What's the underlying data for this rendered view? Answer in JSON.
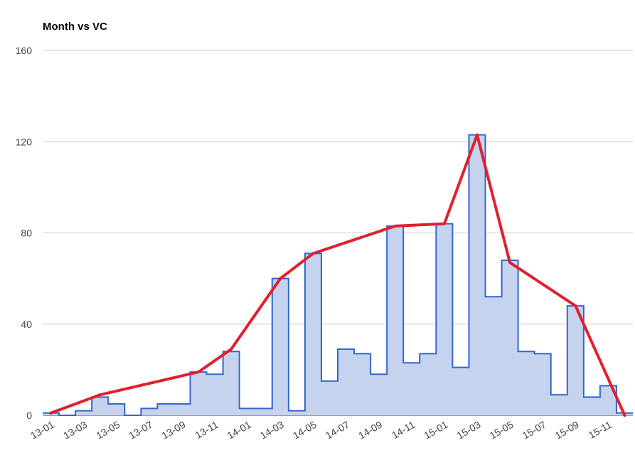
{
  "chart_data": {
    "type": "area",
    "title": "Month vs VC",
    "xlabel": "",
    "ylabel": "",
    "ylim": [
      0,
      160
    ],
    "y_ticks": [
      0,
      40,
      80,
      120,
      160
    ],
    "grid": true,
    "legend": "none",
    "categories": [
      "13-01",
      "13-02",
      "13-03",
      "13-04",
      "13-05",
      "13-06",
      "13-07",
      "13-08",
      "13-09",
      "13-10",
      "13-11",
      "13-12",
      "14-01",
      "14-02",
      "14-03",
      "14-04",
      "14-05",
      "14-06",
      "14-07",
      "14-08",
      "14-09",
      "14-10",
      "14-11",
      "14-12",
      "15-01",
      "15-02",
      "15-03",
      "15-04",
      "15-05",
      "15-06",
      "15-07",
      "15-08",
      "15-09",
      "15-10",
      "15-11",
      "15-12"
    ],
    "x_tick_labels": [
      "13-01",
      "13-03",
      "13-05",
      "13-07",
      "13-09",
      "13-11",
      "14-01",
      "14-03",
      "14-05",
      "14-07",
      "14-09",
      "14-11",
      "15-01",
      "15-03",
      "15-05",
      "15-07",
      "15-09",
      "15-11"
    ],
    "series": [
      {
        "type": "stepped-area",
        "color": "#3366cc",
        "fill": "#c5d3ef",
        "values": [
          1,
          0,
          2,
          8,
          5,
          0,
          3,
          5,
          5,
          19,
          18,
          28,
          3,
          3,
          60,
          2,
          71,
          15,
          29,
          27,
          18,
          83,
          23,
          27,
          84,
          21,
          123,
          52,
          68,
          28,
          27,
          9,
          48,
          8,
          13,
          1
        ]
      },
      {
        "type": "line",
        "color": "#e0202e",
        "points": [
          {
            "x": "13-01",
            "y": 1
          },
          {
            "x": "13-04",
            "y": 9
          },
          {
            "x": "13-10",
            "y": 19
          },
          {
            "x": "13-12",
            "y": 29
          },
          {
            "x": "14-03",
            "y": 60
          },
          {
            "x": "14-05",
            "y": 71
          },
          {
            "x": "14-10",
            "y": 83
          },
          {
            "x": "15-01",
            "y": 84
          },
          {
            "x": "15-03",
            "y": 123
          },
          {
            "x": "15-05",
            "y": 67
          },
          {
            "x": "15-09",
            "y": 48
          },
          {
            "x": "15-12",
            "y": 0
          }
        ]
      }
    ]
  }
}
